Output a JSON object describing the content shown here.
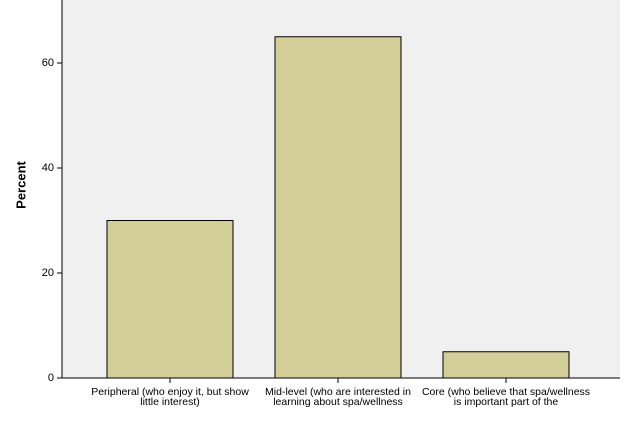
{
  "chart_data": {
    "type": "bar",
    "ylabel": "Percent",
    "categories": [
      "Peripheral (who enjoy it, but show little interest)",
      "Mid-level (who are interested in learning about spa/wellness",
      "Core (who believe that spa/wellness is important part of the"
    ],
    "values": [
      30,
      65,
      5
    ],
    "color": "#d3ce97",
    "ylim": [
      0,
      72
    ],
    "yticks": [
      0,
      20,
      40,
      60
    ]
  }
}
